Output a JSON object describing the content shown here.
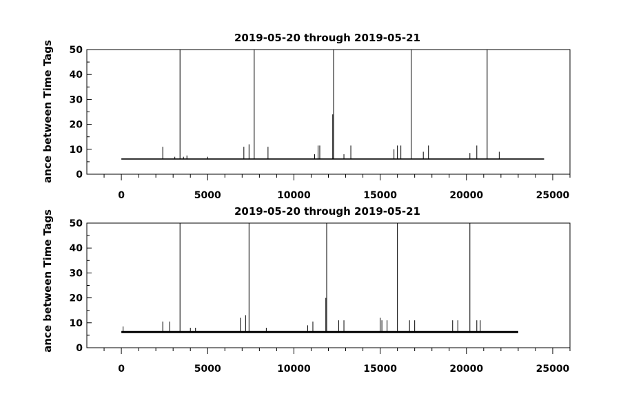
{
  "chart_data": [
    {
      "type": "line",
      "title": "2019-05-20 through 2019-05-21",
      "ylabel": "ance between Time Tags",
      "xlabel": "",
      "xlim": [
        -2000,
        26000
      ],
      "ylim": [
        0,
        50
      ],
      "x_ticks": [
        0,
        5000,
        10000,
        15000,
        20000,
        25000
      ],
      "x_tick_labels": [
        "0",
        "5000",
        "10000",
        "15000",
        "20000",
        "25000"
      ],
      "y_ticks": [
        0,
        10,
        20,
        30,
        40,
        50
      ],
      "y_tick_labels": [
        "0",
        "10",
        "20",
        "30",
        "40",
        "50"
      ],
      "baseline": {
        "x_start": 0,
        "x_end": 24500,
        "y": 6.1
      },
      "spikes": [
        {
          "x": 2400,
          "y": 11
        },
        {
          "x": 3100,
          "y": 7
        },
        {
          "x": 3400,
          "y": 50
        },
        {
          "x": 3600,
          "y": 7
        },
        {
          "x": 3800,
          "y": 7.5
        },
        {
          "x": 5000,
          "y": 7
        },
        {
          "x": 7100,
          "y": 11
        },
        {
          "x": 7400,
          "y": 12
        },
        {
          "x": 7700,
          "y": 50
        },
        {
          "x": 8500,
          "y": 11
        },
        {
          "x": 11200,
          "y": 8
        },
        {
          "x": 11400,
          "y": 11.5
        },
        {
          "x": 11500,
          "y": 11.5
        },
        {
          "x": 12250,
          "y": 24
        },
        {
          "x": 12300,
          "y": 50
        },
        {
          "x": 12900,
          "y": 8
        },
        {
          "x": 13300,
          "y": 11.5
        },
        {
          "x": 15800,
          "y": 10
        },
        {
          "x": 16000,
          "y": 11.5
        },
        {
          "x": 16200,
          "y": 11.5
        },
        {
          "x": 16800,
          "y": 50
        },
        {
          "x": 17500,
          "y": 9
        },
        {
          "x": 17800,
          "y": 11.5
        },
        {
          "x": 20200,
          "y": 8.5
        },
        {
          "x": 20600,
          "y": 11.5
        },
        {
          "x": 21200,
          "y": 50
        },
        {
          "x": 21900,
          "y": 9
        }
      ]
    },
    {
      "type": "line",
      "title": "2019-05-20 through 2019-05-21",
      "ylabel": "ance between Time Tags",
      "xlabel": "",
      "xlim": [
        -2000,
        26000
      ],
      "ylim": [
        0,
        50
      ],
      "x_ticks": [
        0,
        5000,
        10000,
        15000,
        20000,
        25000
      ],
      "x_tick_labels": [
        "0",
        "5000",
        "10000",
        "15000",
        "20000",
        "25000"
      ],
      "y_ticks": [
        0,
        10,
        20,
        30,
        40,
        50
      ],
      "y_tick_labels": [
        "0",
        "10",
        "20",
        "30",
        "40",
        "50"
      ],
      "baseline": {
        "x_start": 0,
        "x_end": 23000,
        "y": 6.3
      },
      "spikes": [
        {
          "x": 100,
          "y": 8.5
        },
        {
          "x": 2400,
          "y": 10.5
        },
        {
          "x": 2800,
          "y": 10.5
        },
        {
          "x": 3400,
          "y": 50
        },
        {
          "x": 4000,
          "y": 8
        },
        {
          "x": 4300,
          "y": 8
        },
        {
          "x": 6900,
          "y": 12
        },
        {
          "x": 7200,
          "y": 13
        },
        {
          "x": 7400,
          "y": 50
        },
        {
          "x": 8400,
          "y": 8
        },
        {
          "x": 10800,
          "y": 9
        },
        {
          "x": 11100,
          "y": 10.5
        },
        {
          "x": 11850,
          "y": 20
        },
        {
          "x": 11900,
          "y": 50
        },
        {
          "x": 12600,
          "y": 11
        },
        {
          "x": 12900,
          "y": 11
        },
        {
          "x": 15000,
          "y": 12
        },
        {
          "x": 15100,
          "y": 11
        },
        {
          "x": 15400,
          "y": 11
        },
        {
          "x": 16000,
          "y": 50
        },
        {
          "x": 16700,
          "y": 11
        },
        {
          "x": 17000,
          "y": 11
        },
        {
          "x": 19200,
          "y": 11
        },
        {
          "x": 19500,
          "y": 11
        },
        {
          "x": 20200,
          "y": 50
        },
        {
          "x": 20600,
          "y": 11
        },
        {
          "x": 20800,
          "y": 11
        }
      ]
    }
  ]
}
